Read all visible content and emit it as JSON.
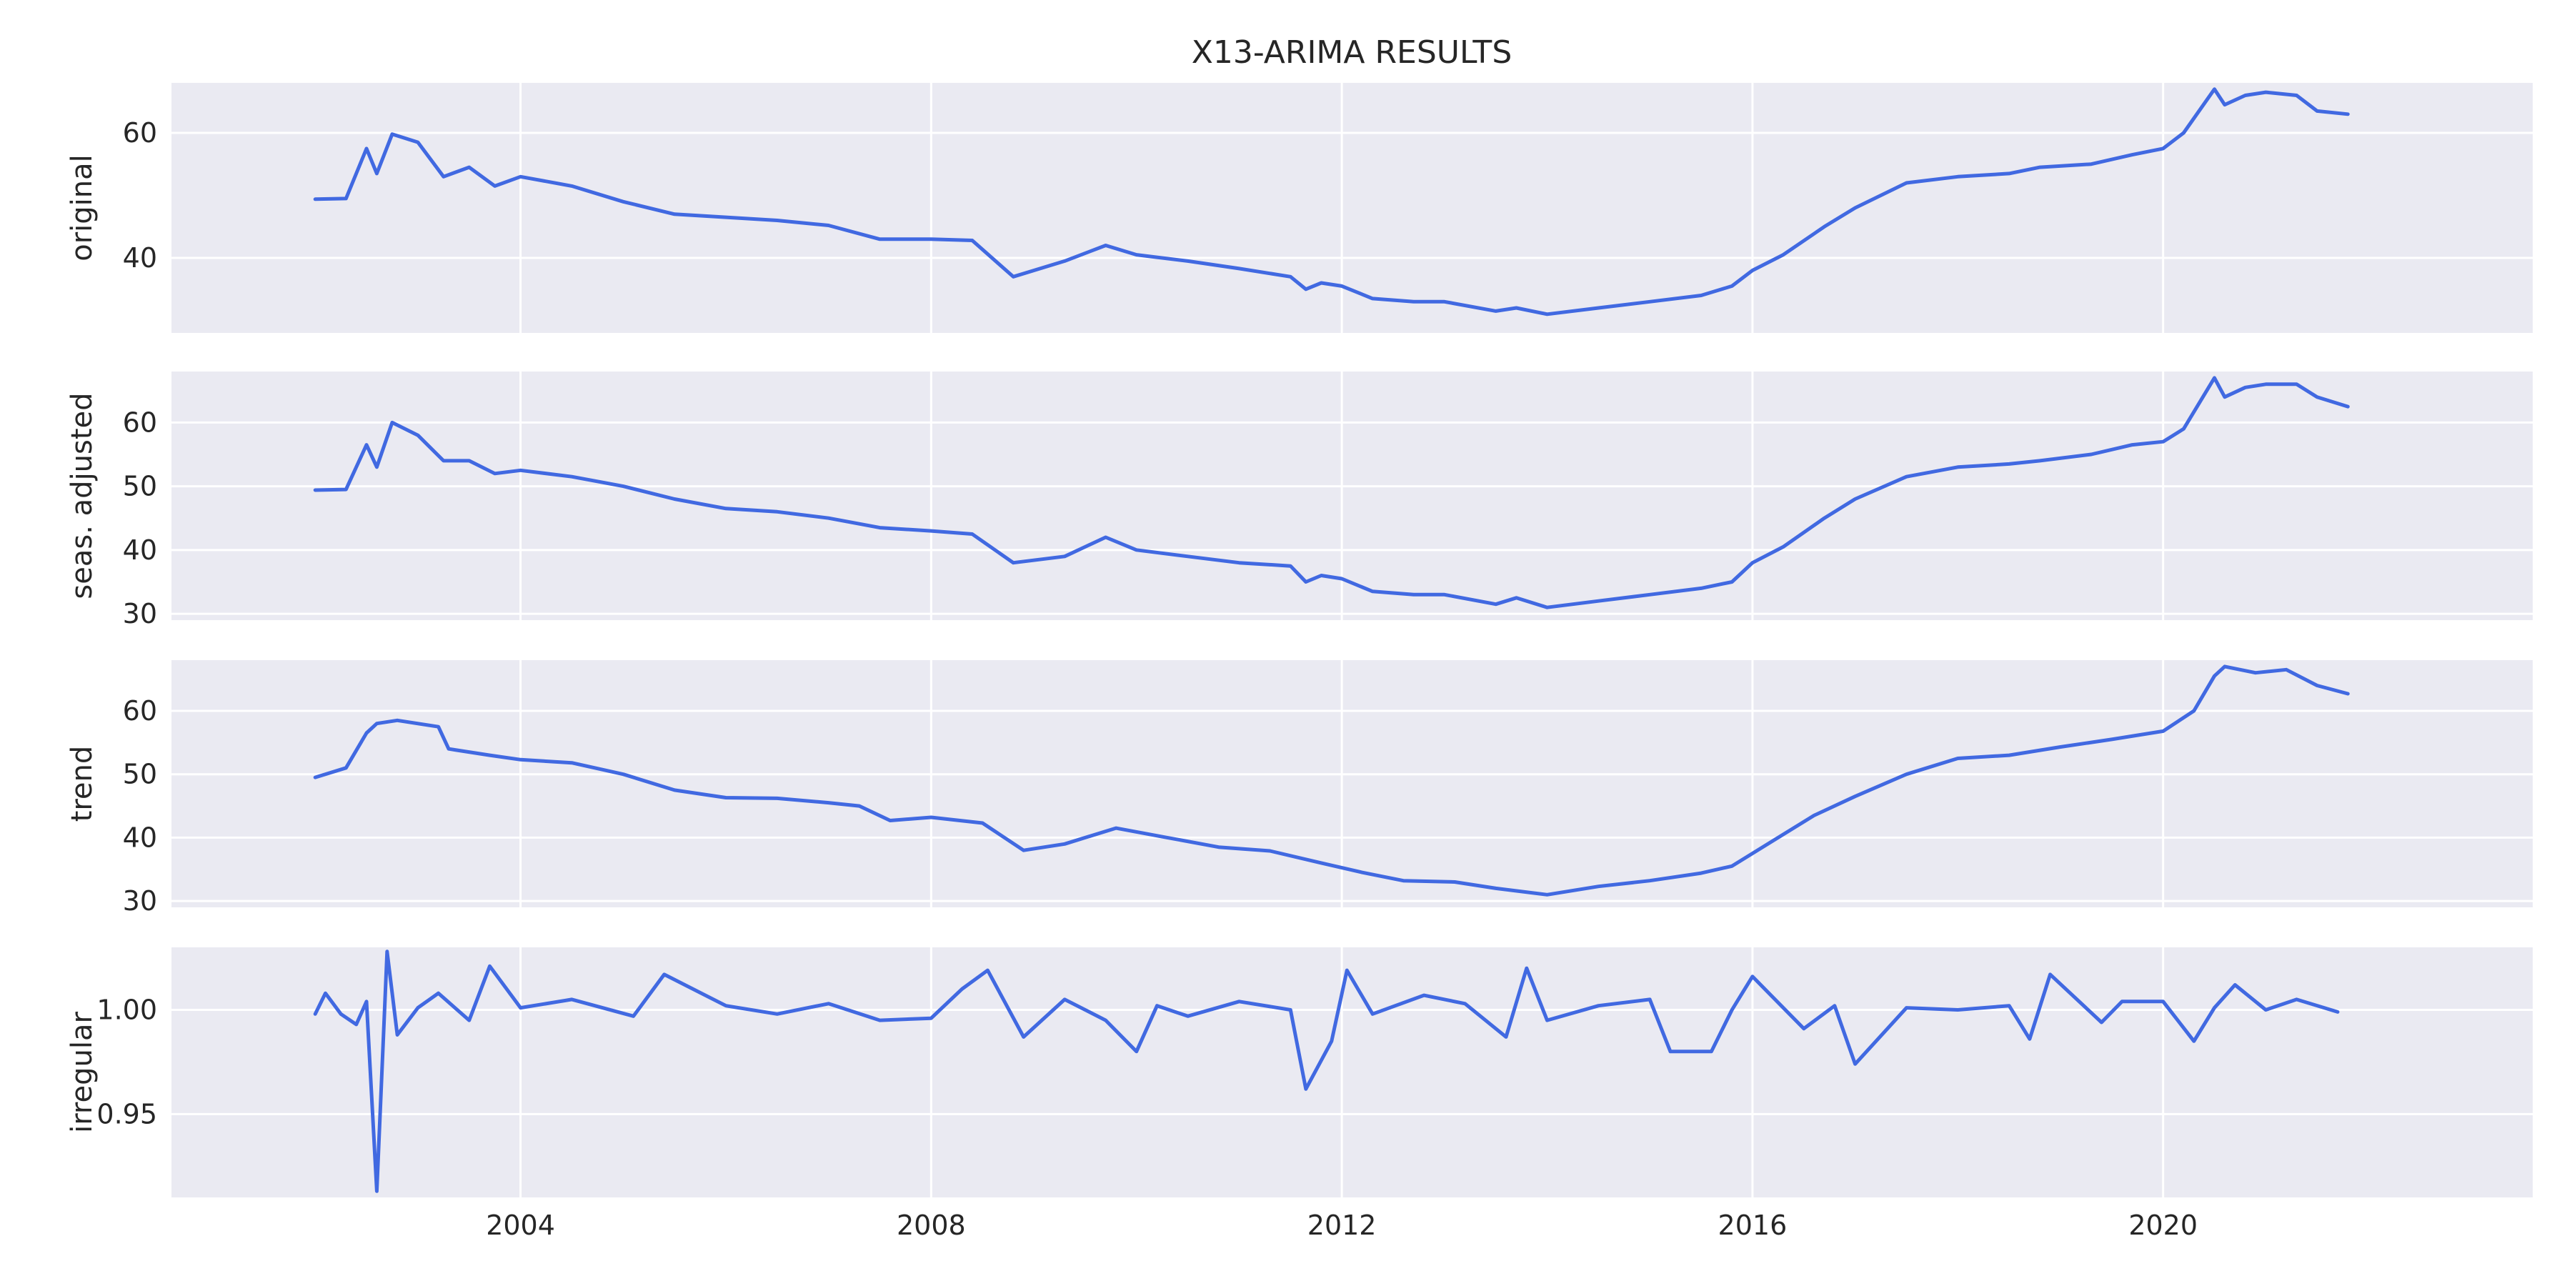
{
  "chart_data": {
    "type": "line",
    "title": "X13-ARIMA RESULTS",
    "xlabel": "",
    "x_range": [
      2000.6,
      2023.6
    ],
    "x_ticks": [
      2004,
      2008,
      2012,
      2016,
      2020
    ],
    "x_tick_labels": [
      "2004",
      "2008",
      "2012",
      "2016",
      "2020"
    ],
    "line_color": "#4169e1",
    "background_color": "#eaeaf2",
    "grid": true,
    "panels": [
      {
        "name": "original",
        "ylabel": "original",
        "ylim": [
          28,
          68
        ],
        "y_ticks": [
          40,
          60
        ],
        "y_tick_labels": [
          "40",
          "60"
        ],
        "x": [
          2002.0,
          2002.3,
          2002.5,
          2002.6,
          2002.75,
          2003.0,
          2003.25,
          2003.5,
          2003.75,
          2004.0,
          2004.5,
          2005.0,
          2005.5,
          2006.0,
          2006.5,
          2007.0,
          2007.5,
          2008.0,
          2008.4,
          2008.8,
          2009.3,
          2009.7,
          2010.0,
          2010.5,
          2011.0,
          2011.5,
          2011.65,
          2011.8,
          2012.0,
          2012.3,
          2012.7,
          2013.0,
          2013.5,
          2013.7,
          2014.0,
          2014.5,
          2015.0,
          2015.5,
          2015.8,
          2016.0,
          2016.3,
          2016.7,
          2017.0,
          2017.5,
          2018.0,
          2018.5,
          2018.8,
          2019.3,
          2019.7,
          2020.0,
          2020.2,
          2020.5,
          2020.6,
          2020.8,
          2021.0,
          2021.3,
          2021.5,
          2021.8
        ],
        "values": [
          49.4,
          49.5,
          57.5,
          53.5,
          59.8,
          58.5,
          53.0,
          54.5,
          51.5,
          53.0,
          51.5,
          49.0,
          47.0,
          46.5,
          46.0,
          45.2,
          43.0,
          43.0,
          42.8,
          37.0,
          39.5,
          42.0,
          40.5,
          39.5,
          38.3,
          37.0,
          35.0,
          36.0,
          35.5,
          33.5,
          33.0,
          33.0,
          31.5,
          32.0,
          31.0,
          32.0,
          33.0,
          34.0,
          35.5,
          38.0,
          40.5,
          45.0,
          48.0,
          52.0,
          53.0,
          53.5,
          54.5,
          55.0,
          56.5,
          57.5,
          60.0,
          67.0,
          64.5,
          66.0,
          66.5,
          66.0,
          63.5,
          63.0
        ]
      },
      {
        "name": "seasonally-adjusted",
        "ylabel": "seas. adjusted",
        "ylim": [
          29,
          68
        ],
        "y_ticks": [
          30,
          40,
          50,
          60
        ],
        "y_tick_labels": [
          "30",
          "40",
          "50",
          "60"
        ],
        "x": [
          2002.0,
          2002.3,
          2002.5,
          2002.6,
          2002.75,
          2003.0,
          2003.25,
          2003.5,
          2003.75,
          2004.0,
          2004.5,
          2005.0,
          2005.5,
          2006.0,
          2006.5,
          2007.0,
          2007.5,
          2008.0,
          2008.4,
          2008.8,
          2009.3,
          2009.7,
          2010.0,
          2010.5,
          2011.0,
          2011.5,
          2011.65,
          2011.8,
          2012.0,
          2012.3,
          2012.7,
          2013.0,
          2013.5,
          2013.7,
          2014.0,
          2014.5,
          2015.0,
          2015.5,
          2015.8,
          2016.0,
          2016.3,
          2016.7,
          2017.0,
          2017.5,
          2018.0,
          2018.5,
          2018.8,
          2019.3,
          2019.7,
          2020.0,
          2020.2,
          2020.5,
          2020.6,
          2020.8,
          2021.0,
          2021.3,
          2021.5,
          2021.8
        ],
        "values": [
          49.4,
          49.5,
          56.5,
          53.0,
          60.0,
          58.0,
          54.0,
          54.0,
          52.0,
          52.5,
          51.5,
          50.0,
          48.0,
          46.5,
          46.0,
          45.0,
          43.5,
          43.0,
          42.5,
          38.0,
          39.0,
          42.0,
          40.0,
          39.0,
          38.0,
          37.5,
          35.0,
          36.0,
          35.5,
          33.5,
          33.0,
          33.0,
          31.5,
          32.5,
          31.0,
          32.0,
          33.0,
          34.0,
          35.0,
          38.0,
          40.5,
          45.0,
          48.0,
          51.5,
          53.0,
          53.5,
          54.0,
          55.0,
          56.5,
          57.0,
          59.0,
          67.0,
          64.0,
          65.5,
          66.0,
          66.0,
          64.0,
          62.5
        ]
      },
      {
        "name": "trend",
        "ylabel": "trend",
        "ylim": [
          29,
          68
        ],
        "y_ticks": [
          30,
          40,
          50,
          60
        ],
        "y_tick_labels": [
          "30",
          "40",
          "50",
          "60"
        ],
        "x": [
          2002.0,
          2002.3,
          2002.5,
          2002.6,
          2002.8,
          2003.2,
          2003.3,
          2003.7,
          2004.0,
          2004.5,
          2005.0,
          2005.5,
          2006.0,
          2006.5,
          2007.0,
          2007.3,
          2007.6,
          2008.0,
          2008.5,
          2008.9,
          2009.3,
          2009.8,
          2010.3,
          2010.8,
          2011.3,
          2011.8,
          2012.2,
          2012.6,
          2013.1,
          2013.5,
          2014.0,
          2014.5,
          2015.0,
          2015.5,
          2015.8,
          2016.2,
          2016.6,
          2017.0,
          2017.5,
          2018.0,
          2018.5,
          2019.0,
          2019.5,
          2020.0,
          2020.3,
          2020.5,
          2020.6,
          2020.9,
          2021.2,
          2021.5,
          2021.8
        ],
        "values": [
          49.5,
          51.0,
          56.5,
          58.0,
          58.5,
          57.5,
          54.0,
          53.0,
          52.3,
          51.8,
          50.0,
          47.5,
          46.3,
          46.2,
          45.5,
          45.0,
          42.7,
          43.2,
          42.3,
          38.0,
          39.0,
          41.5,
          40.0,
          38.5,
          37.9,
          36.0,
          34.5,
          33.2,
          33.0,
          32.0,
          31.0,
          32.3,
          33.2,
          34.4,
          35.5,
          39.5,
          43.5,
          46.5,
          50.0,
          52.5,
          53.0,
          54.3,
          55.5,
          56.8,
          60.0,
          65.5,
          67.0,
          66.0,
          66.5,
          64.0,
          62.7
        ]
      },
      {
        "name": "irregular",
        "ylabel": "irregular",
        "ylim": [
          0.91,
          1.03
        ],
        "y_ticks": [
          0.95,
          1.0
        ],
        "y_tick_labels": [
          "0.95",
          "1.00"
        ],
        "x": [
          2002.0,
          2002.1,
          2002.25,
          2002.4,
          2002.5,
          2002.6,
          2002.7,
          2002.8,
          2003.0,
          2003.2,
          2003.5,
          2003.7,
          2004.0,
          2004.5,
          2005.1,
          2005.4,
          2006.0,
          2006.5,
          2007.0,
          2007.5,
          2008.0,
          2008.3,
          2008.55,
          2008.9,
          2009.3,
          2009.7,
          2010.0,
          2010.2,
          2010.5,
          2011.0,
          2011.5,
          2011.65,
          2011.9,
          2012.05,
          2012.3,
          2012.8,
          2013.2,
          2013.6,
          2013.8,
          2014.0,
          2014.5,
          2015.0,
          2015.2,
          2015.6,
          2015.8,
          2016.0,
          2016.5,
          2016.8,
          2017.0,
          2017.5,
          2018.0,
          2018.5,
          2018.7,
          2018.9,
          2019.4,
          2019.6,
          2020.0,
          2020.3,
          2020.5,
          2020.7,
          2021.0,
          2021.3,
          2021.7
        ],
        "values": [
          0.998,
          1.008,
          0.998,
          0.993,
          1.004,
          0.913,
          1.028,
          0.988,
          1.001,
          1.008,
          0.995,
          1.021,
          1.001,
          1.005,
          0.997,
          1.017,
          1.002,
          0.998,
          1.003,
          0.995,
          0.996,
          1.01,
          1.019,
          0.987,
          1.005,
          0.995,
          0.98,
          1.002,
          0.997,
          1.004,
          1.0,
          0.962,
          0.985,
          1.019,
          0.998,
          1.007,
          1.003,
          0.987,
          1.02,
          0.995,
          1.002,
          1.005,
          0.98,
          0.98,
          1.0,
          1.016,
          0.991,
          1.002,
          0.974,
          1.001,
          1.0,
          1.002,
          0.986,
          1.017,
          0.994,
          1.004,
          1.004,
          0.985,
          1.001,
          1.012,
          1.0,
          1.005,
          0.999
        ]
      }
    ]
  }
}
